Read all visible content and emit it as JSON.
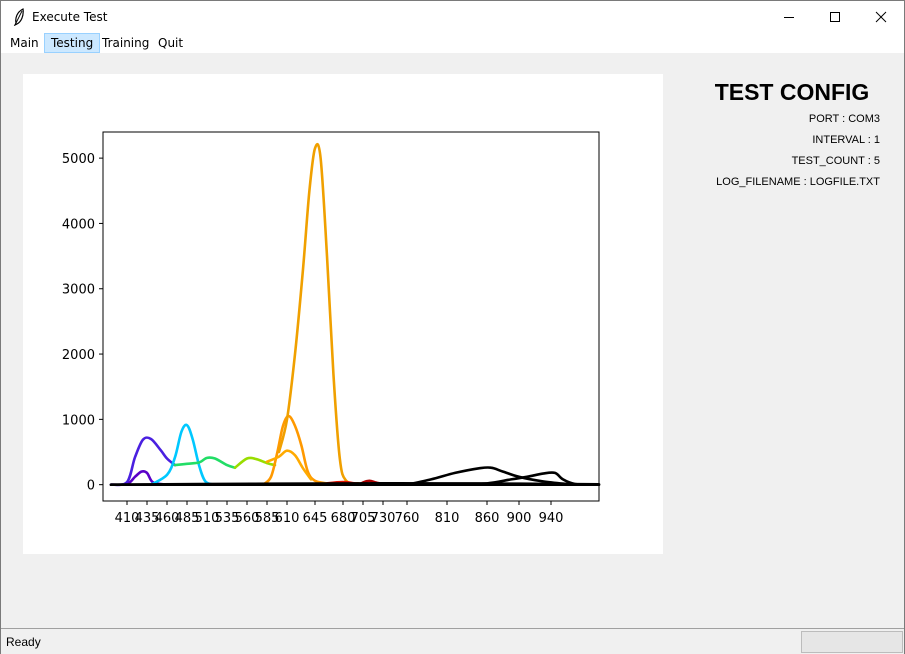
{
  "window": {
    "title": "Execute Test"
  },
  "menu": [
    {
      "label": "Main"
    },
    {
      "label": "Testing"
    },
    {
      "label": "Training"
    },
    {
      "label": "Quit"
    }
  ],
  "config": {
    "title": "TEST CONFIG",
    "lines": [
      "PORT : COM3",
      "INTERVAL : 1",
      "TEST_COUNT : 5",
      "LOG_FILENAME : LOGFILE.TXT"
    ]
  },
  "status": {
    "text": "Ready"
  },
  "chart_data": {
    "type": "line",
    "xlim": [
      380,
      1000
    ],
    "ylim": [
      -250,
      5400
    ],
    "yticks": [
      0,
      1000,
      2000,
      3000,
      4000,
      5000
    ],
    "xticks": [
      410,
      435,
      460,
      485,
      510,
      535,
      560,
      585,
      610,
      645,
      680,
      705,
      730,
      760,
      810,
      860,
      900,
      940
    ],
    "series": [
      {
        "color": "#5a00c8",
        "points": [
          [
            390,
            0
          ],
          [
            410,
            10
          ],
          [
            420,
            120
          ],
          [
            428,
            200
          ],
          [
            435,
            180
          ],
          [
            442,
            40
          ],
          [
            455,
            5
          ],
          [
            470,
            0
          ]
        ]
      },
      {
        "color": "#4a20e0",
        "points": [
          [
            390,
            0
          ],
          [
            410,
            40
          ],
          [
            420,
            420
          ],
          [
            430,
            690
          ],
          [
            440,
            700
          ],
          [
            452,
            530
          ],
          [
            460,
            400
          ],
          [
            470,
            300
          ]
        ]
      },
      {
        "color": "#00c8ff",
        "points": [
          [
            440,
            0
          ],
          [
            460,
            150
          ],
          [
            470,
            420
          ],
          [
            478,
            810
          ],
          [
            485,
            910
          ],
          [
            492,
            700
          ],
          [
            500,
            300
          ],
          [
            508,
            50
          ],
          [
            520,
            0
          ]
        ]
      },
      {
        "color": "#22dd66",
        "points": [
          [
            470,
            300
          ],
          [
            485,
            320
          ],
          [
            500,
            340
          ],
          [
            510,
            410
          ],
          [
            520,
            400
          ],
          [
            535,
            300
          ],
          [
            545,
            260
          ]
        ]
      },
      {
        "color": "#99dd00",
        "points": [
          [
            545,
            260
          ],
          [
            560,
            400
          ],
          [
            572,
            390
          ],
          [
            585,
            330
          ],
          [
            595,
            300
          ]
        ]
      },
      {
        "color": "#ff9900",
        "points": [
          [
            580,
            0
          ],
          [
            590,
            120
          ],
          [
            598,
            500
          ],
          [
            605,
            900
          ],
          [
            612,
            1050
          ],
          [
            620,
            900
          ],
          [
            628,
            600
          ],
          [
            636,
            200
          ],
          [
            645,
            60
          ],
          [
            660,
            20
          ]
        ]
      },
      {
        "color": "#ffaa00",
        "points": [
          [
            585,
            350
          ],
          [
            600,
            430
          ],
          [
            610,
            520
          ],
          [
            620,
            450
          ],
          [
            630,
            250
          ],
          [
            640,
            80
          ]
        ]
      },
      {
        "color": "#f0a000",
        "points": [
          [
            600,
            500
          ],
          [
            610,
            1000
          ],
          [
            620,
            2000
          ],
          [
            630,
            3300
          ],
          [
            638,
            4500
          ],
          [
            645,
            5150
          ],
          [
            652,
            5000
          ],
          [
            660,
            3500
          ],
          [
            668,
            1700
          ],
          [
            676,
            400
          ],
          [
            684,
            60
          ],
          [
            700,
            20
          ]
        ]
      },
      {
        "color": "#dd1100",
        "points": [
          [
            660,
            20
          ],
          [
            680,
            40
          ],
          [
            695,
            20
          ],
          [
            705,
            10
          ],
          [
            720,
            10
          ],
          [
            740,
            5
          ]
        ]
      },
      {
        "color": "#aa0000",
        "points": [
          [
            700,
            5
          ],
          [
            712,
            60
          ],
          [
            722,
            30
          ],
          [
            735,
            5
          ],
          [
            750,
            0
          ]
        ]
      },
      {
        "color": "#000000",
        "points": [
          [
            760,
            0
          ],
          [
            790,
            80
          ],
          [
            820,
            180
          ],
          [
            850,
            250
          ],
          [
            865,
            260
          ],
          [
            880,
            200
          ],
          [
            900,
            120
          ],
          [
            930,
            50
          ],
          [
            960,
            10
          ]
        ]
      },
      {
        "color": "#000000",
        "points": [
          [
            820,
            0
          ],
          [
            860,
            20
          ],
          [
            890,
            80
          ],
          [
            910,
            120
          ],
          [
            930,
            170
          ],
          [
            945,
            180
          ],
          [
            955,
            80
          ],
          [
            970,
            10
          ],
          [
            990,
            0
          ]
        ]
      },
      {
        "color": "#000000",
        "points": [
          [
            390,
            0
          ],
          [
            500,
            10
          ],
          [
            600,
            15
          ],
          [
            700,
            20
          ],
          [
            800,
            20
          ],
          [
            900,
            15
          ],
          [
            1000,
            5
          ]
        ]
      },
      {
        "color": "#000000",
        "points": [
          [
            390,
            0
          ],
          [
            600,
            0
          ],
          [
            800,
            0
          ],
          [
            1000,
            0
          ]
        ]
      }
    ]
  }
}
